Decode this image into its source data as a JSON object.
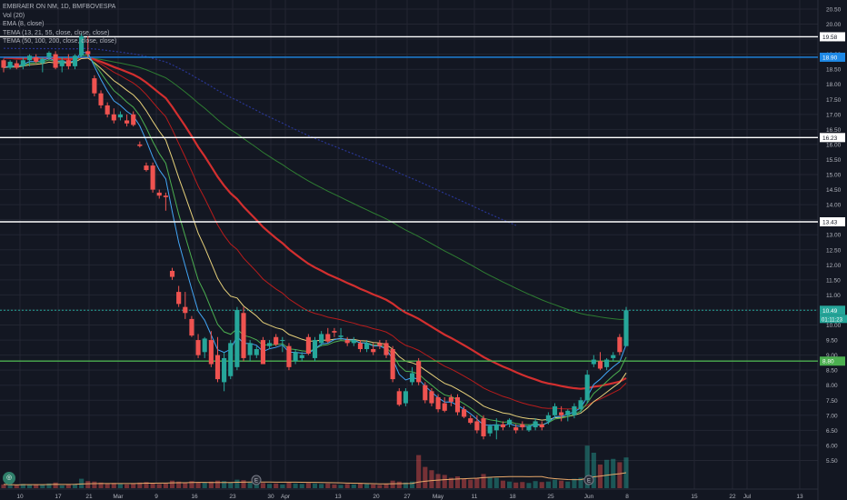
{
  "legend": {
    "title": "EMBRAER ON NM, 1D, BMFBOVESPA",
    "vol": "Vol (20)",
    "ema": "EMA (8, close)",
    "tema1": "TEMA (13, 21, 55, close, close, close)",
    "tema2": "TEMA (50, 100, 200, close, close, close)"
  },
  "colors": {
    "background": "#131722",
    "grid": "#232632",
    "up": "#26a69a",
    "down": "#ef5350",
    "ema": "#2962ff",
    "ema_fast": "#42a5f5",
    "mid_green": "#4caf50",
    "mid_yellow": "#e6d07a",
    "long_red": "#d32f2f",
    "long_green": "#2e7d32",
    "hline": "#ffffff",
    "support": "#4caf50",
    "resistance_blue": "#1e88e5",
    "current_price": "#26a69a"
  },
  "badges": {
    "countdown": "01:11:23",
    "current": "10.49"
  },
  "chart_data": {
    "type": "candlestick",
    "y_range": [
      5.0,
      20.5
    ],
    "y_ticks": [
      "20.50",
      "20.00",
      "19.50",
      "19.00",
      "18.50",
      "18.00",
      "17.50",
      "17.00",
      "16.50",
      "16.00",
      "15.50",
      "15.00",
      "14.50",
      "14.00",
      "13.50",
      "13.00",
      "12.50",
      "12.00",
      "11.50",
      "11.00",
      "10.50",
      "10.00",
      "9.50",
      "9.00",
      "8.50",
      "8.00",
      "7.50",
      "7.00",
      "6.50",
      "6.00",
      "5.50"
    ],
    "x_ticks": [
      "10",
      "17",
      "21",
      "Mar",
      "9",
      "16",
      "23",
      "30",
      "Apr",
      "13",
      "20",
      "27",
      "May",
      "11",
      "18",
      "25",
      "Jun",
      "8",
      "15",
      "22",
      "Jul",
      "13"
    ],
    "horizontal_levels": [
      {
        "price": 19.58,
        "label": "19.58",
        "color": "#ffffff"
      },
      {
        "price": 18.9,
        "label": "18.90",
        "color": "#1e88e5"
      },
      {
        "price": 16.23,
        "label": "16.23",
        "color": "#ffffff"
      },
      {
        "price": 13.43,
        "label": "13.43",
        "color": "#ffffff"
      },
      {
        "price": 10.49,
        "label": "10.49",
        "color": "#26a69a",
        "dotted": true
      },
      {
        "price": 8.8,
        "label": "8.80",
        "color": "#4caf50"
      }
    ],
    "candles": [
      [
        18.8,
        18.85,
        18.4,
        18.55
      ],
      [
        18.55,
        18.8,
        18.5,
        18.75
      ],
      [
        18.7,
        18.8,
        18.5,
        18.55
      ],
      [
        18.6,
        18.9,
        18.5,
        18.8
      ],
      [
        18.8,
        19.0,
        18.6,
        18.95
      ],
      [
        18.9,
        19.0,
        18.7,
        18.75
      ],
      [
        18.7,
        18.9,
        18.4,
        18.85
      ],
      [
        18.9,
        19.1,
        18.8,
        19.05
      ],
      [
        19.0,
        19.1,
        18.5,
        18.55
      ],
      [
        18.6,
        18.9,
        18.4,
        18.8
      ],
      [
        18.8,
        19.0,
        18.5,
        18.6
      ],
      [
        18.6,
        19.0,
        18.5,
        18.95
      ],
      [
        18.95,
        19.7,
        18.9,
        19.6
      ],
      [
        19.1,
        19.6,
        18.9,
        19.0
      ],
      [
        18.2,
        18.3,
        17.6,
        17.7
      ],
      [
        17.7,
        17.8,
        17.2,
        17.3
      ],
      [
        17.3,
        17.4,
        16.9,
        17.0
      ],
      [
        17.0,
        17.2,
        16.7,
        16.8
      ],
      [
        16.9,
        17.1,
        16.8,
        17.0
      ],
      [
        16.8,
        17.0,
        16.6,
        16.7
      ],
      [
        17.0,
        17.1,
        16.6,
        16.65
      ],
      [
        16.0,
        16.1,
        15.9,
        15.95
      ],
      [
        15.3,
        15.4,
        15.1,
        15.15
      ],
      [
        15.3,
        15.4,
        14.4,
        14.5
      ],
      [
        14.4,
        14.5,
        14.2,
        14.3
      ],
      [
        14.3,
        14.4,
        13.8,
        14.25
      ],
      [
        11.8,
        11.9,
        11.5,
        11.6
      ],
      [
        11.1,
        11.3,
        10.6,
        10.7
      ],
      [
        10.6,
        11.1,
        10.2,
        10.4
      ],
      [
        10.2,
        10.3,
        9.6,
        9.65
      ],
      [
        9.5,
        9.7,
        8.9,
        9.0
      ],
      [
        9.1,
        9.6,
        8.9,
        9.55
      ],
      [
        9.5,
        9.8,
        8.6,
        8.7
      ],
      [
        9.0,
        9.6,
        8.1,
        8.2
      ],
      [
        8.1,
        9.1,
        7.8,
        8.9
      ],
      [
        8.3,
        9.5,
        8.2,
        9.4
      ],
      [
        8.6,
        10.6,
        8.5,
        10.5
      ],
      [
        10.4,
        10.6,
        8.8,
        8.9
      ],
      [
        9.0,
        9.5,
        8.8,
        9.4
      ],
      [
        9.0,
        9.3,
        8.9,
        9.2
      ],
      [
        9.5,
        9.6,
        8.7,
        8.7
      ],
      [
        9.3,
        9.5,
        9.2,
        9.4
      ],
      [
        9.6,
        9.7,
        9.3,
        9.35
      ],
      [
        9.5,
        9.6,
        9.1,
        9.5
      ],
      [
        9.3,
        9.4,
        8.5,
        8.6
      ],
      [
        8.8,
        9.2,
        8.7,
        9.1
      ],
      [
        8.9,
        9.1,
        8.8,
        9.0
      ],
      [
        9.6,
        9.7,
        9.0,
        9.05
      ],
      [
        8.9,
        9.6,
        8.8,
        9.5
      ],
      [
        9.4,
        9.8,
        9.3,
        9.7
      ],
      [
        9.7,
        9.9,
        9.4,
        9.45
      ],
      [
        9.8,
        9.9,
        9.6,
        9.75
      ],
      [
        9.6,
        9.9,
        9.5,
        9.65
      ],
      [
        9.5,
        9.6,
        9.3,
        9.4
      ],
      [
        9.4,
        9.6,
        9.3,
        9.5
      ],
      [
        9.4,
        9.5,
        9.1,
        9.2
      ],
      [
        9.2,
        9.5,
        9.1,
        9.4
      ],
      [
        9.2,
        9.4,
        9.0,
        9.1
      ],
      [
        9.4,
        9.5,
        9.2,
        9.3
      ],
      [
        9.4,
        9.5,
        8.9,
        9.0
      ],
      [
        9.2,
        9.3,
        8.1,
        8.2
      ],
      [
        7.8,
        7.9,
        7.3,
        7.35
      ],
      [
        7.4,
        7.9,
        7.3,
        7.8
      ],
      [
        8.1,
        8.6,
        8.0,
        8.4
      ],
      [
        8.8,
        8.9,
        8.0,
        8.1
      ],
      [
        8.0,
        8.1,
        7.4,
        7.5
      ],
      [
        7.8,
        7.9,
        7.3,
        7.4
      ],
      [
        7.6,
        7.7,
        7.1,
        7.2
      ],
      [
        7.4,
        7.6,
        7.1,
        7.15
      ],
      [
        7.6,
        7.7,
        7.3,
        7.45
      ],
      [
        7.6,
        7.7,
        7.0,
        7.1
      ],
      [
        7.2,
        7.3,
        6.9,
        6.95
      ],
      [
        6.9,
        7.0,
        6.7,
        6.75
      ],
      [
        6.8,
        7.0,
        6.4,
        6.5
      ],
      [
        6.9,
        7.0,
        6.2,
        6.3
      ],
      [
        6.4,
        6.7,
        6.3,
        6.65
      ],
      [
        6.5,
        6.9,
        6.2,
        6.7
      ],
      [
        6.7,
        6.8,
        6.5,
        6.6
      ],
      [
        6.7,
        6.9,
        6.6,
        6.85
      ],
      [
        6.6,
        6.7,
        6.4,
        6.5
      ],
      [
        6.7,
        6.8,
        6.5,
        6.6
      ],
      [
        6.5,
        6.7,
        6.45,
        6.65
      ],
      [
        6.6,
        6.9,
        6.5,
        6.8
      ],
      [
        6.7,
        6.8,
        6.5,
        6.6
      ],
      [
        6.8,
        7.1,
        6.7,
        7.0
      ],
      [
        7.0,
        7.4,
        6.9,
        7.3
      ],
      [
        7.1,
        7.3,
        6.8,
        7.0
      ],
      [
        7.0,
        7.2,
        6.8,
        7.15
      ],
      [
        7.0,
        7.4,
        6.9,
        7.3
      ],
      [
        7.2,
        7.6,
        7.1,
        7.5
      ],
      [
        7.5,
        8.5,
        7.4,
        8.35
      ],
      [
        8.7,
        9.0,
        8.6,
        8.85
      ],
      [
        8.8,
        9.1,
        8.5,
        8.55
      ],
      [
        8.6,
        8.9,
        8.5,
        8.85
      ],
      [
        8.9,
        9.1,
        8.8,
        9.0
      ],
      [
        9.6,
        9.7,
        9.0,
        9.1
      ],
      [
        9.3,
        10.6,
        9.3,
        10.49
      ]
    ],
    "volume": [
      0.08,
      0.07,
      0.06,
      0.09,
      0.07,
      0.08,
      0.07,
      0.1,
      0.12,
      0.06,
      0.08,
      0.09,
      0.2,
      0.15,
      0.14,
      0.12,
      0.1,
      0.11,
      0.09,
      0.08,
      0.1,
      0.12,
      0.13,
      0.11,
      0.09,
      0.1,
      0.16,
      0.14,
      0.12,
      0.15,
      0.13,
      0.12,
      0.14,
      0.16,
      0.15,
      0.12,
      0.18,
      0.17,
      0.12,
      0.1,
      0.11,
      0.09,
      0.1,
      0.08,
      0.12,
      0.1,
      0.09,
      0.11,
      0.1,
      0.09,
      0.1,
      0.08,
      0.07,
      0.09,
      0.08,
      0.1,
      0.09,
      0.08,
      0.07,
      0.09,
      0.16,
      0.14,
      0.12,
      0.14,
      0.7,
      0.45,
      0.38,
      0.3,
      0.28,
      0.22,
      0.25,
      0.2,
      0.18,
      0.22,
      0.3,
      0.24,
      0.22,
      0.16,
      0.14,
      0.12,
      0.13,
      0.11,
      0.15,
      0.13,
      0.14,
      0.18,
      0.16,
      0.14,
      0.2,
      0.22,
      0.9,
      0.75,
      0.5,
      0.6,
      0.62,
      0.55,
      0.65
    ]
  }
}
